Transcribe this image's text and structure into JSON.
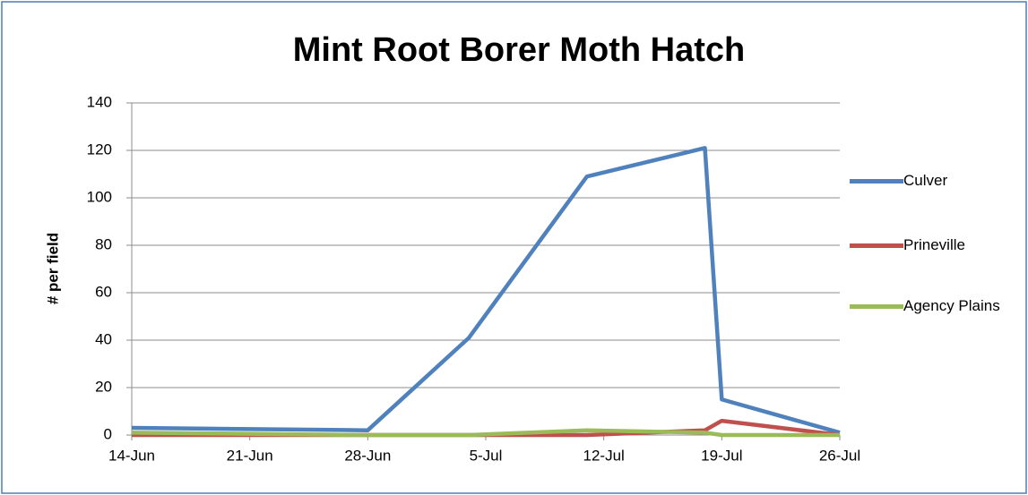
{
  "chart_data": {
    "type": "line",
    "title": "Mint Root Borer Moth Hatch",
    "y_label": "# per field",
    "x": [
      "14-Jun",
      "28-Jun",
      "4-Jul",
      "11-Jul",
      "18-Jul",
      "19-Jul",
      "26-Jul"
    ],
    "series": [
      {
        "name": "Culver",
        "color": "#4f81bd",
        "values": [
          3,
          2,
          41,
          109,
          121,
          15,
          1
        ]
      },
      {
        "name": "Prineville",
        "color": "#c0504d",
        "values": [
          0,
          0,
          0,
          0,
          2,
          6,
          0
        ]
      },
      {
        "name": "Agency Plains",
        "color": "#9bbb59",
        "values": [
          1,
          0,
          0,
          2,
          1,
          0,
          0
        ]
      }
    ],
    "xticks": [
      "14-Jun",
      "21-Jun",
      "28-Jun",
      "5-Jul",
      "12-Jul",
      "19-Jul",
      "26-Jul"
    ],
    "xlim": [
      "14-Jun",
      "26-Jul"
    ],
    "ylim": [
      0,
      140
    ],
    "yticks": [
      0,
      20,
      40,
      60,
      80,
      100,
      120,
      140
    ],
    "grid": true,
    "legend": "right"
  }
}
